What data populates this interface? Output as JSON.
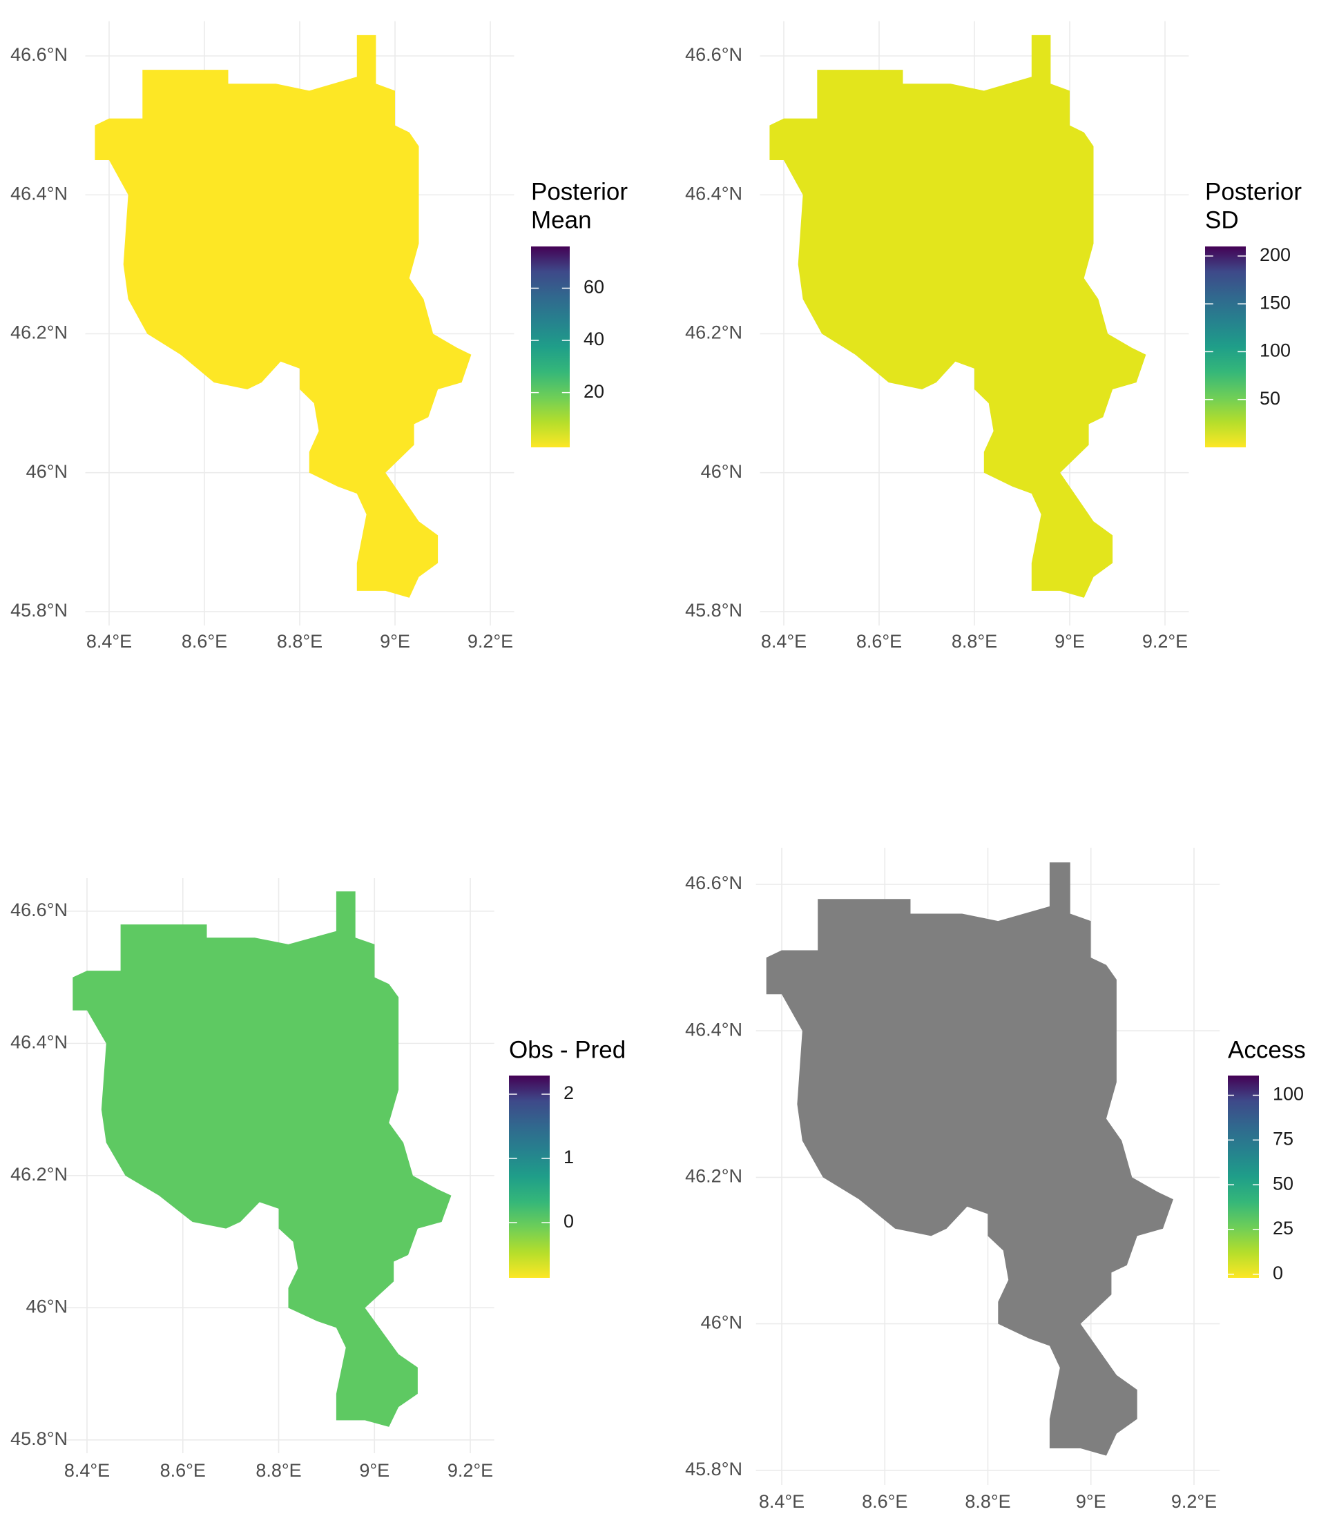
{
  "chart_data": [
    {
      "type": "map",
      "xlim": [
        8.35,
        9.25
      ],
      "ylim": [
        45.78,
        46.65
      ],
      "xticks": [
        {
          "value": 8.4,
          "label": "8.4°E"
        },
        {
          "value": 8.6,
          "label": "8.6°E"
        },
        {
          "value": 8.8,
          "label": "8.8°E"
        },
        {
          "value": 9,
          "label": "9°E"
        },
        {
          "value": 9.2,
          "label": "9.2°E"
        }
      ],
      "yticks": [
        {
          "value": 45.8,
          "label": "45.8°N"
        },
        {
          "value": 46,
          "label": "46°N"
        },
        {
          "value": 46.2,
          "label": "46.2°N"
        },
        {
          "value": 46.4,
          "label": "46.4°N"
        },
        {
          "value": 46.6,
          "label": "46.6°N"
        }
      ],
      "grid": true,
      "colorbar": {
        "title": [
          "Posterior",
          "Mean"
        ],
        "lim": [
          -1,
          76
        ],
        "ticks": [
          20,
          40,
          60
        ]
      }
    },
    {
      "type": "map",
      "xlim": [
        8.35,
        9.25
      ],
      "ylim": [
        45.78,
        46.65
      ],
      "xticks": [
        {
          "value": 8.4,
          "label": "8.4°E"
        },
        {
          "value": 8.6,
          "label": "8.6°E"
        },
        {
          "value": 8.8,
          "label": "8.8°E"
        },
        {
          "value": 9,
          "label": "9°E"
        },
        {
          "value": 9.2,
          "label": "9.2°E"
        }
      ],
      "yticks": [
        {
          "value": 45.8,
          "label": "45.8°N"
        },
        {
          "value": 46,
          "label": "46°N"
        },
        {
          "value": 46.2,
          "label": "46.2°N"
        },
        {
          "value": 46.4,
          "label": "46.4°N"
        },
        {
          "value": 46.6,
          "label": "46.6°N"
        }
      ],
      "grid": true,
      "colorbar": {
        "title": [
          "Posterior",
          "SD"
        ],
        "lim": [
          0,
          210
        ],
        "ticks": [
          50,
          100,
          150,
          200
        ]
      }
    },
    {
      "type": "map",
      "xlim": [
        8.35,
        9.25
      ],
      "ylim": [
        45.78,
        46.65
      ],
      "xticks": [
        {
          "value": 8.4,
          "label": "8.4°E"
        },
        {
          "value": 8.6,
          "label": "8.6°E"
        },
        {
          "value": 8.8,
          "label": "8.8°E"
        },
        {
          "value": 9,
          "label": "9°E"
        },
        {
          "value": 9.2,
          "label": "9.2°E"
        }
      ],
      "yticks": [
        {
          "value": 45.8,
          "label": "45.8°N"
        },
        {
          "value": 46,
          "label": "46°N"
        },
        {
          "value": 46.2,
          "label": "46.2°N"
        },
        {
          "value": 46.4,
          "label": "46.4°N"
        },
        {
          "value": 46.6,
          "label": "46.6°N"
        }
      ],
      "grid": true,
      "colorbar": {
        "title": [
          "Obs - Pred"
        ],
        "lim": [
          -0.86,
          2.29
        ],
        "ticks": [
          0,
          1,
          2
        ]
      }
    },
    {
      "type": "map",
      "xlim": [
        8.35,
        9.25
      ],
      "ylim": [
        45.78,
        46.65
      ],
      "xticks": [
        {
          "value": 8.4,
          "label": "8.4°E"
        },
        {
          "value": 8.6,
          "label": "8.6°E"
        },
        {
          "value": 8.8,
          "label": "8.8°E"
        },
        {
          "value": 9,
          "label": "9°E"
        },
        {
          "value": 9.2,
          "label": "9.2°E"
        }
      ],
      "yticks": [
        {
          "value": 45.8,
          "label": "45.8°N"
        },
        {
          "value": 46,
          "label": "46°N"
        },
        {
          "value": 46.2,
          "label": "46.2°N"
        },
        {
          "value": 46.4,
          "label": "46.4°N"
        },
        {
          "value": 46.6,
          "label": "46.6°N"
        }
      ],
      "grid": true,
      "colorbar": {
        "title": [
          "Access"
        ],
        "lim": [
          -2,
          111
        ],
        "ticks": [
          0,
          25,
          50,
          75,
          100
        ]
      }
    }
  ]
}
